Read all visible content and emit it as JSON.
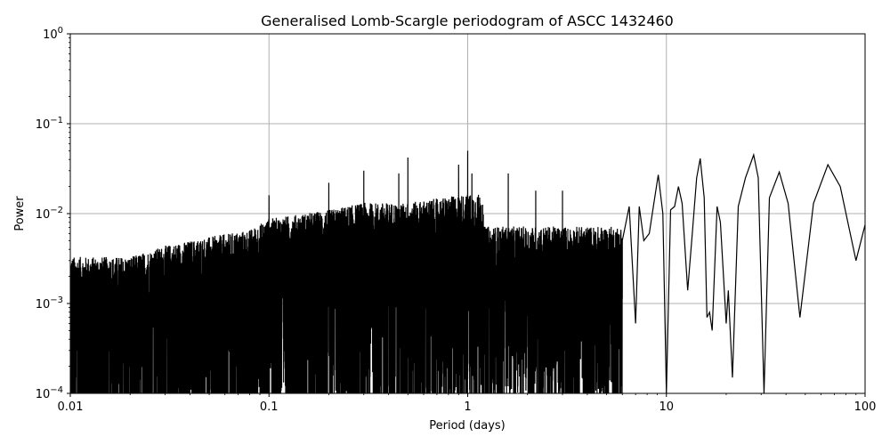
{
  "chart_data": {
    "type": "line",
    "title": "Generalised Lomb-Scargle periodogram of ASCC 1432460",
    "xlabel": "Period (days)",
    "ylabel": "Power",
    "xscale": "log",
    "yscale": "log",
    "xlim": [
      0.01,
      100
    ],
    "ylim": [
      0.0001,
      1
    ],
    "grid": true,
    "line_color": "#000000",
    "grid_color": "#b0b0b0",
    "x_ticks": [
      {
        "value": 0.01,
        "label": "0.01"
      },
      {
        "value": 0.1,
        "label": "0.1"
      },
      {
        "value": 1,
        "label": "1"
      },
      {
        "value": 10,
        "label": "10"
      },
      {
        "value": 100,
        "label": "100"
      }
    ],
    "y_ticks": [
      {
        "value": 0.0001,
        "base": "10",
        "exp": "−4"
      },
      {
        "value": 0.001,
        "base": "10",
        "exp": "−3"
      },
      {
        "value": 0.01,
        "base": "10",
        "exp": "−2"
      },
      {
        "value": 0.1,
        "base": "10",
        "exp": "−1"
      },
      {
        "value": 1,
        "base": "10",
        "exp": "0"
      }
    ],
    "series": [
      {
        "description_envelope_short_periods": [
          [
            0.01,
            0.003
          ],
          [
            0.02,
            0.003
          ],
          [
            0.03,
            0.004
          ],
          [
            0.05,
            0.005
          ],
          [
            0.08,
            0.006
          ],
          [
            0.1,
            0.008
          ],
          [
            0.2,
            0.01
          ],
          [
            0.3,
            0.012
          ],
          [
            0.5,
            0.012
          ],
          [
            1.0,
            0.015
          ]
        ],
        "notable_peaks": [
          [
            0.1,
            0.016
          ],
          [
            0.2,
            0.022
          ],
          [
            0.3,
            0.03
          ],
          [
            0.45,
            0.028
          ],
          [
            0.5,
            0.042
          ],
          [
            0.9,
            0.035
          ],
          [
            1.0,
            0.05
          ],
          [
            1.05,
            0.028
          ],
          [
            1.6,
            0.028
          ],
          [
            2.2,
            0.018
          ],
          [
            3.0,
            0.018
          ]
        ],
        "long_period_curve": [
          [
            6.0,
            0.005
          ],
          [
            6.5,
            0.012
          ],
          [
            7.0,
            0.0006
          ],
          [
            7.3,
            0.012
          ],
          [
            7.7,
            0.005
          ],
          [
            8.2,
            0.006
          ],
          [
            8.6,
            0.012
          ],
          [
            9.1,
            0.027
          ],
          [
            9.6,
            0.01
          ],
          [
            10.0,
            0.0001
          ],
          [
            10.5,
            0.011
          ],
          [
            11.0,
            0.012
          ],
          [
            11.5,
            0.02
          ],
          [
            12.0,
            0.013
          ],
          [
            12.8,
            0.0014
          ],
          [
            13.5,
            0.006
          ],
          [
            14.2,
            0.025
          ],
          [
            14.8,
            0.041
          ],
          [
            15.5,
            0.015
          ],
          [
            16.0,
            0.0007
          ],
          [
            16.5,
            0.0008
          ],
          [
            17.0,
            0.0005
          ],
          [
            18.0,
            0.012
          ],
          [
            18.7,
            0.008
          ],
          [
            20.0,
            0.0006
          ],
          [
            20.5,
            0.0014
          ],
          [
            21.5,
            0.00015
          ],
          [
            23.0,
            0.012
          ],
          [
            25.0,
            0.025
          ],
          [
            27.5,
            0.045
          ],
          [
            29.0,
            0.025
          ],
          [
            31.0,
            0.0001
          ],
          [
            33.0,
            0.015
          ],
          [
            37.0,
            0.029
          ],
          [
            41.0,
            0.013
          ],
          [
            47.0,
            0.0007
          ],
          [
            55.0,
            0.013
          ],
          [
            65.0,
            0.035
          ],
          [
            75.0,
            0.02
          ],
          [
            90.0,
            0.003
          ],
          [
            100.0,
            0.0075
          ]
        ]
      }
    ]
  }
}
